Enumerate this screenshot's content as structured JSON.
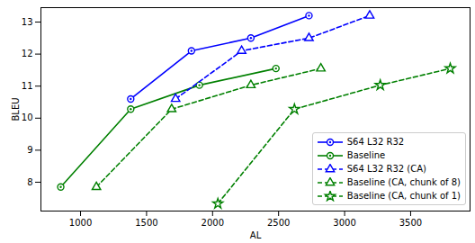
{
  "chart_data": {
    "type": "line",
    "x_label": "AL",
    "y_label": "BLEU",
    "xlim": [
      700,
      3950
    ],
    "ylim": [
      7.1,
      13.45
    ],
    "xticks": [
      1000,
      1500,
      2000,
      2500,
      3000,
      3500
    ],
    "yticks": [
      8,
      9,
      10,
      11,
      12,
      13
    ],
    "grid": false,
    "legend": "lower right",
    "series": [
      {
        "name": "S64 L32 R32",
        "color": "#0000ff",
        "marker": "circle",
        "line_style": "solid",
        "x": [
          1380,
          1840,
          2290,
          2730
        ],
        "values": [
          10.6,
          12.1,
          12.5,
          13.2
        ]
      },
      {
        "name": "Baseline",
        "color": "#008000",
        "marker": "circle",
        "line_style": "solid",
        "x": [
          850,
          1380,
          1900,
          2480
        ],
        "values": [
          7.85,
          10.28,
          11.03,
          11.55
        ]
      },
      {
        "name": "S64 L32 R32 (CA)",
        "color": "#0000ff",
        "marker": "triangle",
        "line_style": "dashed",
        "x": [
          1720,
          2220,
          2730,
          3190
        ],
        "values": [
          10.6,
          12.1,
          12.5,
          13.2
        ]
      },
      {
        "name": "Baseline (CA, chunk of 8)",
        "color": "#008000",
        "marker": "triangle",
        "line_style": "dashed",
        "x": [
          1120,
          1690,
          2290,
          2820
        ],
        "values": [
          7.85,
          10.28,
          11.03,
          11.55
        ]
      },
      {
        "name": "Baseline (CA, chunk of 1)",
        "color": "#008000",
        "marker": "star",
        "line_style": "dashed",
        "x": [
          2040,
          2620,
          3270,
          3800
        ],
        "values": [
          7.33,
          10.28,
          11.03,
          11.55
        ]
      }
    ]
  }
}
